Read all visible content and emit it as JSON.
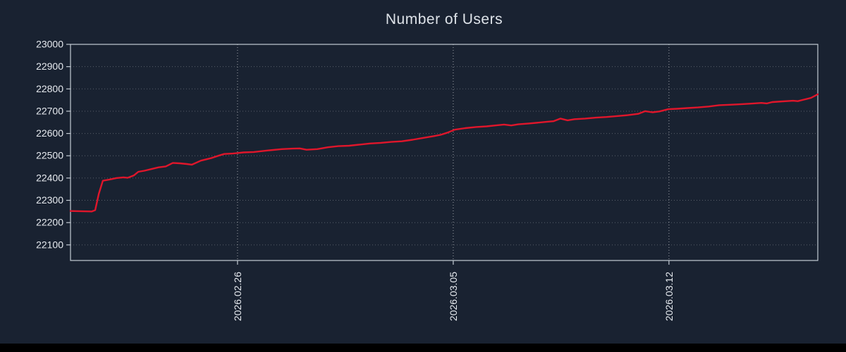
{
  "chart_data": {
    "type": "line",
    "title": "Number of Users",
    "xlabel": "",
    "ylabel": "",
    "legend": "none",
    "grid": "dotted",
    "colors": {
      "background": "#192231",
      "line": "#e0162b",
      "text": "#e6eaef",
      "border": "#c3cbd4",
      "grid": "#ffffff"
    },
    "ylim": [
      22030,
      23000
    ],
    "xlim": [
      0,
      24.25
    ],
    "y_ticks": [
      22100,
      22200,
      22300,
      22400,
      22500,
      22600,
      22700,
      22800,
      22900,
      23000
    ],
    "x_ticks": [
      {
        "t": 5.42,
        "label": "2026.02.26"
      },
      {
        "t": 12.42,
        "label": "2026.03.05"
      },
      {
        "t": 19.42,
        "label": "2026.03.12"
      }
    ],
    "points": [
      [
        0,
        22252
      ],
      [
        0.35,
        22251
      ],
      [
        0.69,
        22250
      ],
      [
        0.8,
        22256
      ],
      [
        0.92,
        22330
      ],
      [
        1.05,
        22388
      ],
      [
        1.26,
        22393
      ],
      [
        1.49,
        22400
      ],
      [
        1.72,
        22403
      ],
      [
        1.85,
        22401
      ],
      [
        2.06,
        22412
      ],
      [
        2.2,
        22428
      ],
      [
        2.4,
        22433
      ],
      [
        2.62,
        22440
      ],
      [
        2.86,
        22448
      ],
      [
        3.09,
        22452
      ],
      [
        3.32,
        22468
      ],
      [
        3.55,
        22466
      ],
      [
        3.78,
        22463
      ],
      [
        3.94,
        22460
      ],
      [
        4.23,
        22478
      ],
      [
        4.58,
        22490
      ],
      [
        4.8,
        22500
      ],
      [
        4.99,
        22508
      ],
      [
        5.26,
        22510
      ],
      [
        5.42,
        22512
      ],
      [
        5.61,
        22515
      ],
      [
        5.95,
        22517
      ],
      [
        6.41,
        22524
      ],
      [
        6.86,
        22530
      ],
      [
        7.21,
        22532
      ],
      [
        7.44,
        22533
      ],
      [
        7.66,
        22527
      ],
      [
        8.01,
        22530
      ],
      [
        8.35,
        22538
      ],
      [
        8.69,
        22543
      ],
      [
        9.04,
        22545
      ],
      [
        9.38,
        22550
      ],
      [
        9.72,
        22555
      ],
      [
        10.07,
        22558
      ],
      [
        10.41,
        22562
      ],
      [
        10.75,
        22565
      ],
      [
        11.1,
        22572
      ],
      [
        11.44,
        22580
      ],
      [
        11.78,
        22588
      ],
      [
        12.01,
        22594
      ],
      [
        12.24,
        22604
      ],
      [
        12.47,
        22617
      ],
      [
        12.81,
        22624
      ],
      [
        13.16,
        22629
      ],
      [
        13.5,
        22632
      ],
      [
        13.84,
        22637
      ],
      [
        14.07,
        22640
      ],
      [
        14.3,
        22636
      ],
      [
        14.53,
        22641
      ],
      [
        14.87,
        22645
      ],
      [
        15.21,
        22649
      ],
      [
        15.44,
        22652
      ],
      [
        15.67,
        22655
      ],
      [
        15.9,
        22667
      ],
      [
        16.13,
        22659
      ],
      [
        16.36,
        22664
      ],
      [
        16.7,
        22667
      ],
      [
        17.05,
        22671
      ],
      [
        17.39,
        22674
      ],
      [
        17.73,
        22678
      ],
      [
        18.08,
        22682
      ],
      [
        18.42,
        22688
      ],
      [
        18.65,
        22700
      ],
      [
        18.88,
        22695
      ],
      [
        19.11,
        22699
      ],
      [
        19.4,
        22709
      ],
      [
        19.68,
        22711
      ],
      [
        20.02,
        22714
      ],
      [
        20.36,
        22717
      ],
      [
        20.71,
        22721
      ],
      [
        21.05,
        22727
      ],
      [
        21.39,
        22729
      ],
      [
        21.74,
        22731
      ],
      [
        22.08,
        22734
      ],
      [
        22.42,
        22737
      ],
      [
        22.6,
        22735
      ],
      [
        22.77,
        22741
      ],
      [
        23.11,
        22744
      ],
      [
        23.45,
        22747
      ],
      [
        23.6,
        22745
      ],
      [
        23.8,
        22752
      ],
      [
        24.03,
        22760
      ],
      [
        24.25,
        22776
      ]
    ]
  }
}
